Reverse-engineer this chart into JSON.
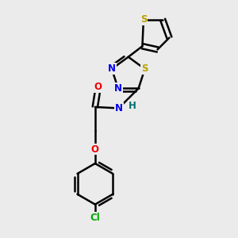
{
  "bg_color": "#ebebeb",
  "bond_color": "#000000",
  "bond_width": 1.8,
  "dbo": 0.05,
  "atom_colors": {
    "S": "#b8a000",
    "N": "#0000ee",
    "O": "#ee0000",
    "Cl": "#00aa00",
    "H": "#007070",
    "C": "#000000"
  },
  "fs": 8.5
}
